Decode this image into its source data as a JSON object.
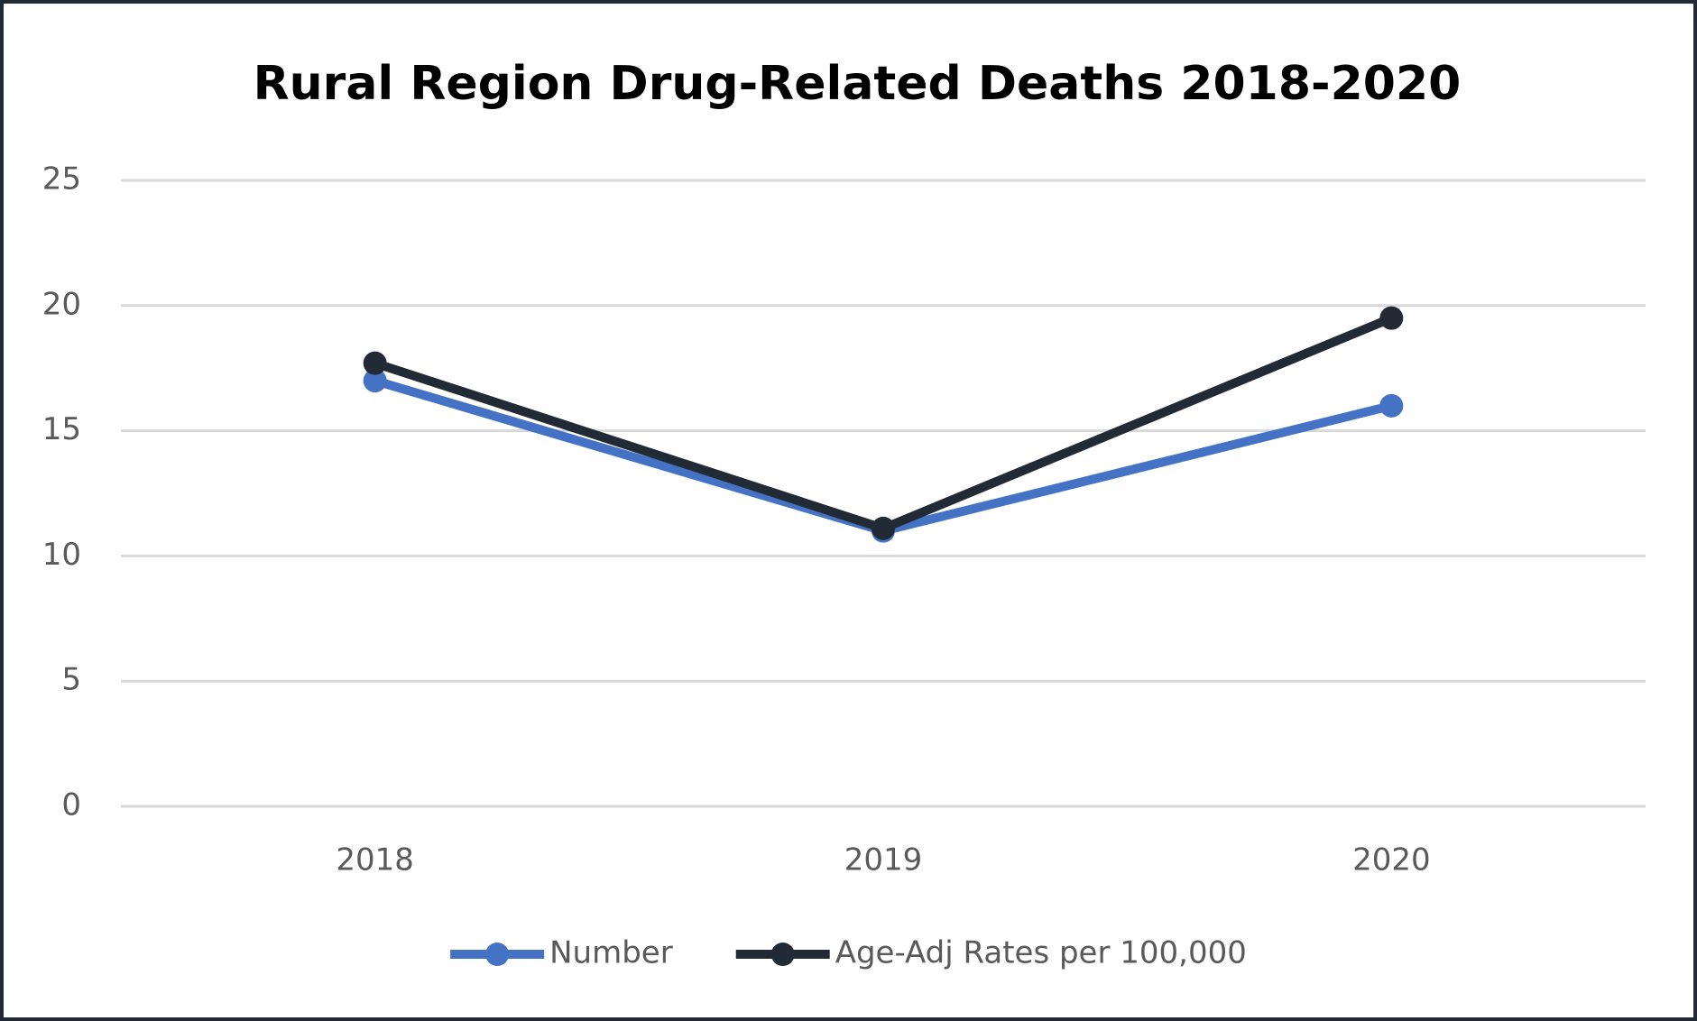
{
  "chart_data": {
    "type": "line",
    "title": "Rural Region Drug-Related Deaths 2018-2020",
    "categories": [
      "2018",
      "2019",
      "2020"
    ],
    "series": [
      {
        "name": "Number",
        "color": "#4472c4",
        "values": [
          17,
          11,
          16
        ]
      },
      {
        "name": "Age-Adj Rates per 100,000",
        "color": "#222a35",
        "values": [
          17.7,
          11.1,
          19.5
        ]
      }
    ],
    "ylim": [
      0,
      25
    ],
    "yticks": [
      0,
      5,
      10,
      15,
      20,
      25
    ],
    "grid": true,
    "legend": "bottom"
  }
}
